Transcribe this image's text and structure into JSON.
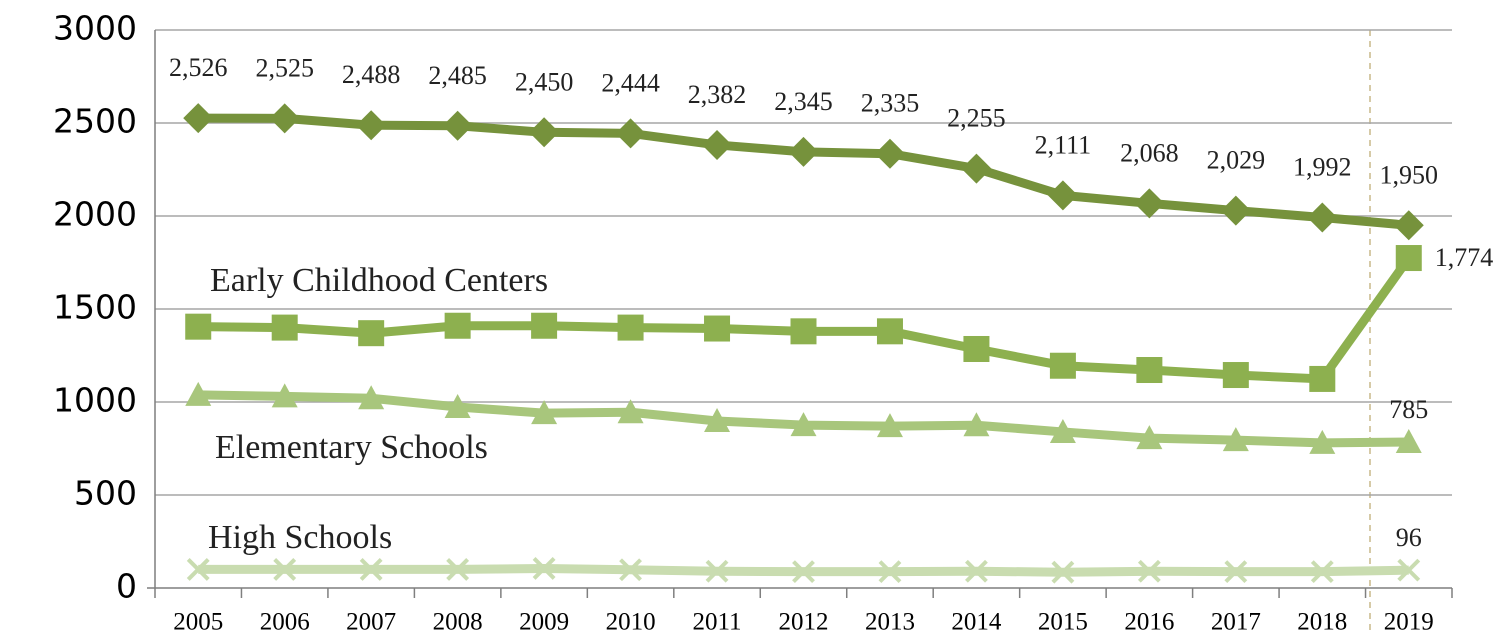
{
  "chart_data": {
    "type": "line",
    "categories": [
      "2005",
      "2006",
      "2007",
      "2008",
      "2009",
      "2010",
      "2011",
      "2012",
      "2013",
      "2014",
      "2015",
      "2016",
      "2017",
      "2018",
      "2019"
    ],
    "series": [
      {
        "color": "#76923c",
        "marker": "diamond",
        "values": [
          2526,
          2525,
          2488,
          2485,
          2450,
          2444,
          2382,
          2345,
          2335,
          2255,
          2111,
          2068,
          2029,
          1992,
          1950
        ],
        "value_labels": [
          "2,526",
          "2,525",
          "2,488",
          "2,485",
          "2,450",
          "2,444",
          "2,382",
          "2,345",
          "2,335",
          "2,255",
          "2,111",
          "2,068",
          "2,029",
          "1,992",
          "1,950"
        ]
      },
      {
        "name": "Early Childhood Centers",
        "color": "#8db04f",
        "marker": "square",
        "values": [
          1405,
          1400,
          1370,
          1410,
          1410,
          1400,
          1395,
          1380,
          1380,
          1285,
          1195,
          1172,
          1145,
          1124,
          1774
        ],
        "value_labels": [
          null,
          null,
          null,
          null,
          null,
          null,
          null,
          null,
          null,
          null,
          null,
          null,
          null,
          null,
          "1,774"
        ]
      },
      {
        "name": "Elementary Schools",
        "color": "#a8c67c",
        "marker": "triangle",
        "values": [
          1038,
          1030,
          1020,
          973,
          940,
          945,
          898,
          876,
          870,
          875,
          839,
          806,
          795,
          780,
          785
        ],
        "value_labels": [
          null,
          null,
          null,
          null,
          null,
          null,
          null,
          null,
          null,
          null,
          null,
          null,
          null,
          null,
          "785"
        ]
      },
      {
        "name": "High Schools",
        "color": "#c9dcb0",
        "marker": "x",
        "values": [
          100,
          100,
          100,
          100,
          105,
          98,
          90,
          88,
          88,
          90,
          85,
          90,
          88,
          88,
          96
        ],
        "value_labels": [
          null,
          null,
          null,
          null,
          null,
          null,
          null,
          null,
          null,
          null,
          null,
          null,
          null,
          null,
          "96"
        ]
      }
    ],
    "ylim": [
      0,
      3000
    ],
    "yticks": [
      0,
      500,
      1000,
      1500,
      2000,
      2500,
      3000
    ],
    "grid": true
  }
}
